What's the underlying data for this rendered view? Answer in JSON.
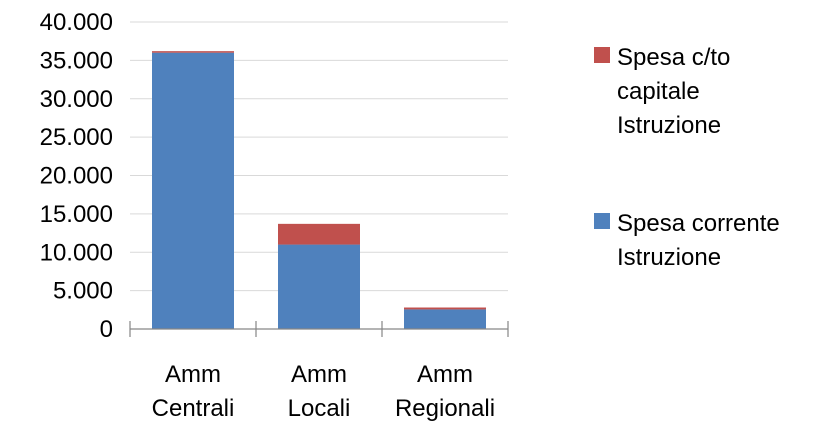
{
  "chart_data": {
    "type": "bar",
    "stacked": true,
    "categories": [
      [
        "Amm",
        "Centrali"
      ],
      [
        "Amm",
        "Locali"
      ],
      [
        "Amm",
        "Regionali"
      ]
    ],
    "series": [
      {
        "name": "Spesa corrente Istruzione",
        "name_lines": [
          "Spesa corrente",
          "Istruzione"
        ],
        "color": "#4f81bd",
        "values": [
          36000,
          11000,
          2550
        ]
      },
      {
        "name": "Spesa c/to capitale Istruzione",
        "name_lines": [
          "Spesa c/to",
          "capitale",
          "Istruzione"
        ],
        "color": "#c0504d",
        "values": [
          200,
          2700,
          250
        ]
      }
    ],
    "yticks": [
      "0",
      "5.000",
      "10.000",
      "15.000",
      "20.000",
      "25.000",
      "30.000",
      "35.000",
      "40.000"
    ],
    "ylim": [
      0,
      40000
    ],
    "ystep": 5000,
    "grid": true,
    "legend_position": "right"
  }
}
